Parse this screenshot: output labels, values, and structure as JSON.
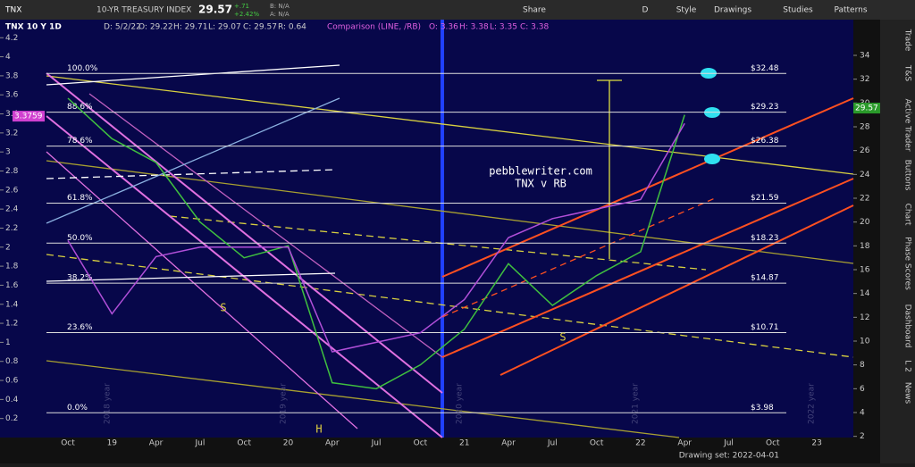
{
  "toolbar": {
    "symbol": "TNX",
    "name": "10-YR TREASURY INDEX",
    "last": "29.57",
    "change": "+.71",
    "change_pct": "+2.42%",
    "bid": "B: N/A",
    "ask": "A: N/A",
    "buttons": [
      "Share",
      "D",
      "Style",
      "Drawings",
      "Studies",
      "Patterns"
    ]
  },
  "header": {
    "items": [
      "TNX 10 Y 1D",
      "D: 5/2/22",
      "O: 29.22",
      "H: 29.71",
      "L: 29.07",
      "C: 29.57",
      "R: 0.64"
    ],
    "comparison": "Comparison (LINE, /RB)",
    "comparison_items": [
      "O: 3.36",
      "H: 3.38",
      "L: 3.35",
      "C: 3.38"
    ]
  },
  "chart_data": {
    "type": "line",
    "categories": [
      "Oct",
      "19",
      "Apr",
      "Jul",
      "Oct",
      "20",
      "Apr",
      "Jul",
      "Oct",
      "21",
      "Apr",
      "Jul",
      "Oct",
      "22",
      "Apr",
      "Jul",
      "Oct",
      "23"
    ],
    "series": [
      {
        "name": "TNX",
        "color": "#3fbf3f",
        "axis": "y2",
        "values": [
          30.4,
          27,
          25,
          20,
          17,
          18,
          6.5,
          6,
          8,
          11,
          16.5,
          13,
          15.5,
          17.5,
          29,
          null,
          null,
          null
        ]
      },
      {
        "name": "/RB",
        "color": "#b04fd8",
        "values": [
          2.07,
          1.3,
          1.9,
          2.0,
          2.0,
          2.0,
          0.9,
          1.0,
          1.1,
          1.45,
          2.1,
          2.3,
          2.4,
          2.5,
          3.3,
          null,
          null,
          null
        ]
      }
    ],
    "ylim": [
      0,
      4.39
    ],
    "yticks": [
      0.2,
      0.4,
      0.6,
      0.8,
      1,
      1.2,
      1.4,
      1.6,
      1.8,
      2,
      2.2,
      2.4,
      2.6,
      2.8,
      3,
      3.2,
      3.4,
      3.6,
      3.8,
      4,
      4.2
    ],
    "y2lim": [
      1.9,
      37
    ],
    "y2ticks": [
      2,
      4,
      6,
      8,
      10,
      12,
      14,
      16,
      18,
      20,
      22,
      24,
      26,
      28,
      30,
      32,
      34
    ],
    "last_left": "3.3759",
    "last_right": "29.57",
    "fib_levels": [
      {
        "pct": "100.0%",
        "value": 32.48,
        "value_label": "$32.48"
      },
      {
        "pct": "88.6%",
        "value": 29.23,
        "value_label": "$29.23"
      },
      {
        "pct": "78.6%",
        "value": 26.38,
        "value_label": "$26.38"
      },
      {
        "pct": "61.8%",
        "value": 21.59,
        "value_label": "$21.59"
      },
      {
        "pct": "50.0%",
        "value": 18.23,
        "value_label": "$18.23"
      },
      {
        "pct": "38.2%",
        "value": 14.87,
        "value_label": "$14.87"
      },
      {
        "pct": "23.6%",
        "value": 10.71,
        "value_label": "$10.71"
      },
      {
        "pct": "0.0%",
        "value": 3.98,
        "value_label": "$3.98"
      }
    ],
    "annotations": [
      "pebblewriter.com",
      "TNX v RB",
      "S",
      "S",
      "H"
    ],
    "watermarks": [
      "2018 year",
      "2019 year",
      "2020 year",
      "2021 year",
      "2022 year"
    ]
  },
  "side_tabs": [
    "Trade",
    "T&S",
    "Active Trader",
    "Buttons",
    "Chart",
    "Phase Scores",
    "Dashboard",
    "L 2",
    "News"
  ],
  "footer": {
    "drawing_set": "Drawing set: 2022-04-01"
  }
}
